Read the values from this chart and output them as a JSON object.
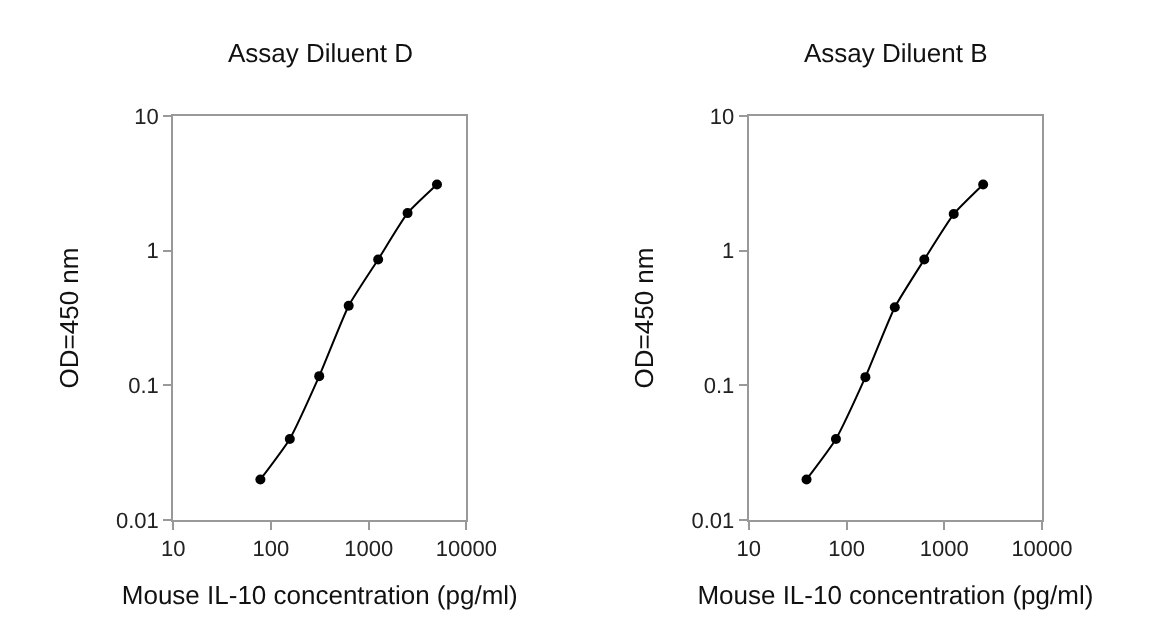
{
  "chart_data": [
    {
      "type": "line",
      "title": "Assay Diluent D",
      "xlabel": "Mouse IL-10 concentration (pg/ml)",
      "ylabel": "OD=450 nm",
      "log": "xy",
      "marker": "circle",
      "line_style": "solid",
      "x": [
        78,
        156,
        312,
        625,
        1250,
        2500,
        5000
      ],
      "series": [
        {
          "color": "#000000",
          "values": [
            0.02,
            0.04,
            0.117,
            0.39,
            0.86,
            1.9,
            3.1
          ]
        }
      ],
      "xlim": [
        10,
        10000
      ],
      "xticks": [
        10,
        100,
        1000,
        10000
      ],
      "ylim": [
        0.01,
        10
      ],
      "yticks": [
        0.01,
        0.1,
        1,
        10
      ]
    },
    {
      "type": "line",
      "title": "Assay Diluent B",
      "xlabel": "Mouse IL-10 concentration (pg/ml)",
      "ylabel": "OD=450 nm",
      "log": "xy",
      "marker": "circle",
      "line_style": "solid",
      "x": [
        39,
        78,
        156,
        312,
        625,
        1250,
        2500
      ],
      "series": [
        {
          "color": "#000000",
          "values": [
            0.02,
            0.04,
            0.115,
            0.38,
            0.86,
            1.87,
            3.1
          ]
        }
      ],
      "xlim": [
        10,
        10000
      ],
      "xticks": [
        10,
        100,
        1000,
        10000
      ],
      "ylim": [
        0.01,
        10
      ],
      "yticks": [
        0.01,
        0.1,
        1,
        10
      ]
    }
  ]
}
